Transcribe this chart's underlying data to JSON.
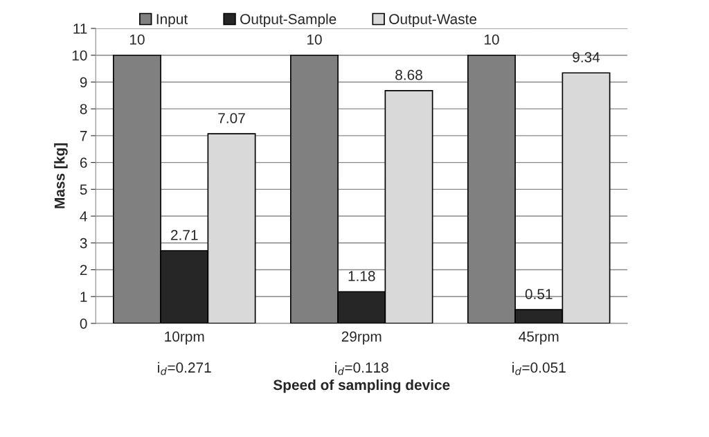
{
  "chart_data": {
    "type": "bar",
    "xlabel": "Speed of sampling device",
    "ylabel": "Mass [kg]",
    "categories": [
      "10rpm\n\ni$_{d}$=0.271",
      "29rpm\n\ni$_{d}$=0.118",
      "45rpm\n\ni$_{d}$=0.051"
    ],
    "series": [
      {
        "name": "Input",
        "color": "#808080",
        "values": [
          10,
          10,
          10
        ]
      },
      {
        "name": "Output-Sample",
        "color": "#262626",
        "values": [
          2.71,
          1.18,
          0.51
        ]
      },
      {
        "name": "Output-Waste",
        "color": "#d9d9d9",
        "values": [
          7.07,
          8.68,
          9.34
        ]
      }
    ],
    "ylim": [
      0,
      11
    ],
    "yticks": [
      0,
      1,
      2,
      3,
      4,
      5,
      6,
      7,
      8,
      9,
      10,
      11
    ],
    "grid": "y",
    "legend": "top",
    "data_labels": true
  }
}
